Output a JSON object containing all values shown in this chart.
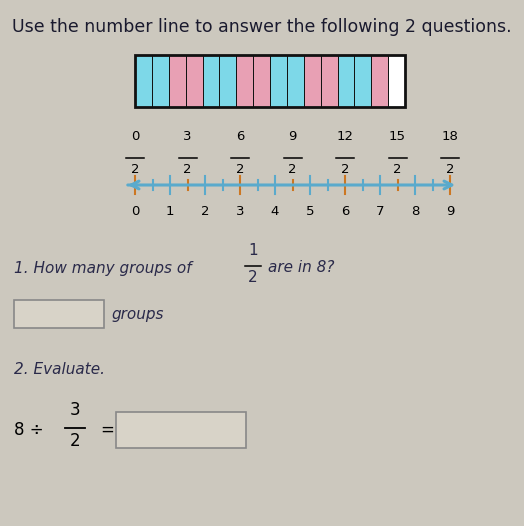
{
  "title": "Use the number line to answer the following 2 questions.",
  "title_fontsize": 12.5,
  "bg_color": "#ccc8be",
  "bar_colors": [
    "#7dd8e8",
    "#7dd8e8",
    "#e8a0b4",
    "#e8a0b4",
    "#7dd8e8",
    "#7dd8e8",
    "#e8a0b4",
    "#e8a0b4",
    "#7dd8e8",
    "#7dd8e8",
    "#e8a0b4",
    "#e8a0b4",
    "#7dd8e8",
    "#7dd8e8",
    "#e8a0b4",
    "#ffffff"
  ],
  "num_segments": 16,
  "bar_border_color": "#111111",
  "number_line_color_main": "#5aaacc",
  "number_line_color_accent": "#cc7722",
  "fraction_numerators": [
    "0",
    "3",
    "6",
    "9",
    "12",
    "15",
    "18"
  ],
  "fraction_denominator": "2",
  "integer_labels": [
    "0",
    "1",
    "2",
    "3",
    "4",
    "5",
    "6",
    "7",
    "8",
    "9"
  ],
  "question1_text": "1. How many groups of",
  "question1_frac_num": "1",
  "question1_frac_den": "2",
  "question1_suffix": "are in 8?",
  "answer_box1_label": "groups",
  "question2_text": "2. Evaluate.",
  "eq_whole": "8",
  "eq_div": "÷",
  "eq_frac_num": "3",
  "eq_frac_den": "2",
  "eq_equals": "="
}
